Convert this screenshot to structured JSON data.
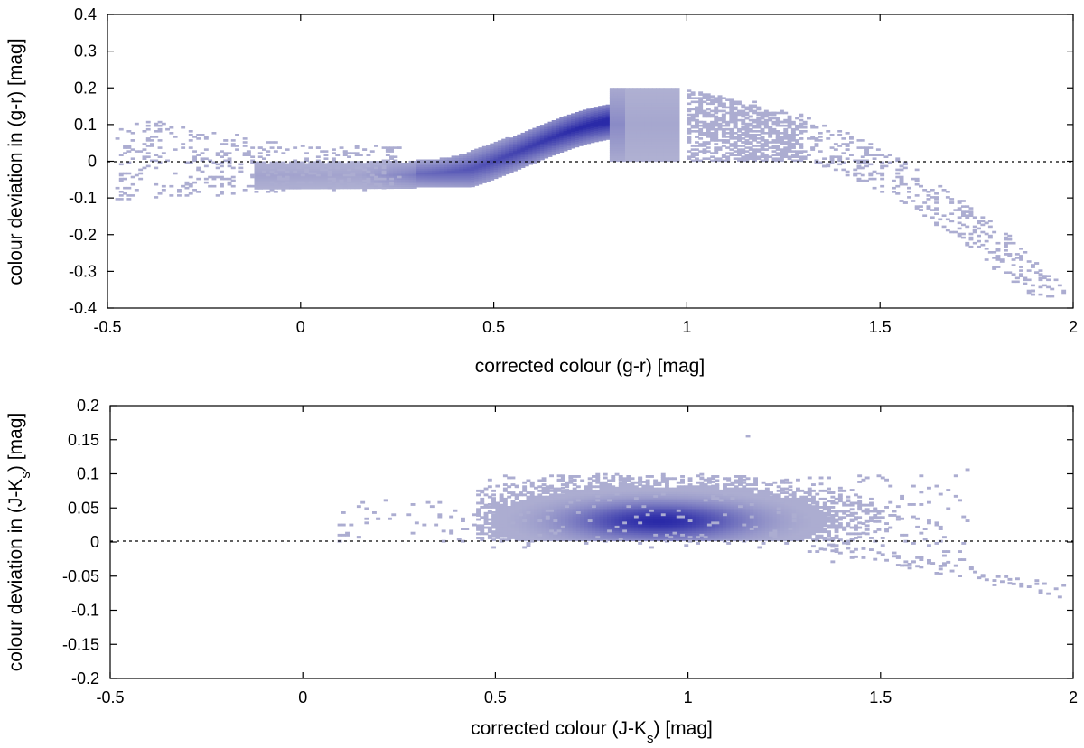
{
  "chart_data": [
    {
      "id": "top",
      "type": "heatmap",
      "title": "",
      "xlabel": "corrected colour (g-r) [mag]",
      "ylabel": "colour deviation in (g-r) [mag]",
      "xlim": [
        -0.5,
        2
      ],
      "ylim": [
        -0.4,
        0.4
      ],
      "xticks": [
        {
          "value": -0.5,
          "label": "-0.5"
        },
        {
          "value": 0,
          "label": "0"
        },
        {
          "value": 0.5,
          "label": "0.5"
        },
        {
          "value": 1,
          "label": "1"
        },
        {
          "value": 1.5,
          "label": "1.5"
        },
        {
          "value": 2,
          "label": "2"
        }
      ],
      "yticks": [
        {
          "value": 0.4,
          "label": "0.4"
        },
        {
          "value": 0.3,
          "label": "0.3"
        },
        {
          "value": 0.2,
          "label": "0.2"
        },
        {
          "value": 0.1,
          "label": "0.1"
        },
        {
          "value": 0,
          "label": "0"
        },
        {
          "value": -0.1,
          "label": "-0.1"
        },
        {
          "value": -0.2,
          "label": "-0.2"
        },
        {
          "value": -0.3,
          "label": "-0.3"
        },
        {
          "value": -0.4,
          "label": "-0.4"
        }
      ],
      "reference_line": {
        "y": 0,
        "style": "dotted"
      },
      "bin_width": [
        0.01,
        0.005
      ],
      "density_regions": [
        {
          "x_range": [
            -0.1,
            0.2
          ],
          "y_center": -0.035,
          "y_halfwidth": 0.04,
          "level": 0.1
        },
        {
          "x_range": [
            0.2,
            0.8
          ],
          "y_center": 0.07,
          "y_halfwidth": 0.06,
          "level": 0.6
        },
        {
          "x_range": [
            0.8,
            1.0
          ],
          "y_center": 0.09,
          "y_halfwidth": 0.1,
          "level": 0.12
        }
      ],
      "scatter_extent": {
        "x_range": [
          -0.45,
          1.98
        ],
        "y_range": [
          -0.37,
          0.22
        ]
      }
    },
    {
      "id": "bottom",
      "type": "heatmap",
      "title": "",
      "xlabel": "corrected colour (J-K",
      "xlabel_sub": "s",
      "xlabel_end": ") [mag]",
      "ylabel": "colour deviation in (J-K",
      "ylabel_sub": "s",
      "ylabel_end": ") [mag]",
      "xlim": [
        -0.5,
        2
      ],
      "ylim": [
        -0.2,
        0.2
      ],
      "xticks": [
        {
          "value": -0.5,
          "label": "-0.5"
        },
        {
          "value": 0,
          "label": "0"
        },
        {
          "value": 0.5,
          "label": "0.5"
        },
        {
          "value": 1,
          "label": "1"
        },
        {
          "value": 1.5,
          "label": "1.5"
        },
        {
          "value": 2,
          "label": "2"
        }
      ],
      "yticks": [
        {
          "value": 0.2,
          "label": "0.2"
        },
        {
          "value": 0.15,
          "label": "0.15"
        },
        {
          "value": 0.1,
          "label": "0.1"
        },
        {
          "value": 0.05,
          "label": "0.05"
        },
        {
          "value": 0,
          "label": "0"
        },
        {
          "value": -0.05,
          "label": "-0.05"
        },
        {
          "value": -0.1,
          "label": "-0.1"
        },
        {
          "value": -0.15,
          "label": "-0.15"
        },
        {
          "value": -0.2,
          "label": "-0.2"
        }
      ],
      "reference_line": {
        "y": 0,
        "style": "dotted"
      },
      "bin_width": [
        0.01,
        0.003
      ],
      "density_peak": {
        "x": 0.92,
        "y": 0.03,
        "level": 1.0
      },
      "scatter_extent": {
        "x_range": [
          0.08,
          1.98
        ],
        "y_range": [
          -0.075,
          0.155
        ]
      }
    }
  ],
  "colors": {
    "low": "#b3b4d3",
    "high": "#2a2aa8",
    "axis": "#000000",
    "reference_line": "#000000"
  }
}
